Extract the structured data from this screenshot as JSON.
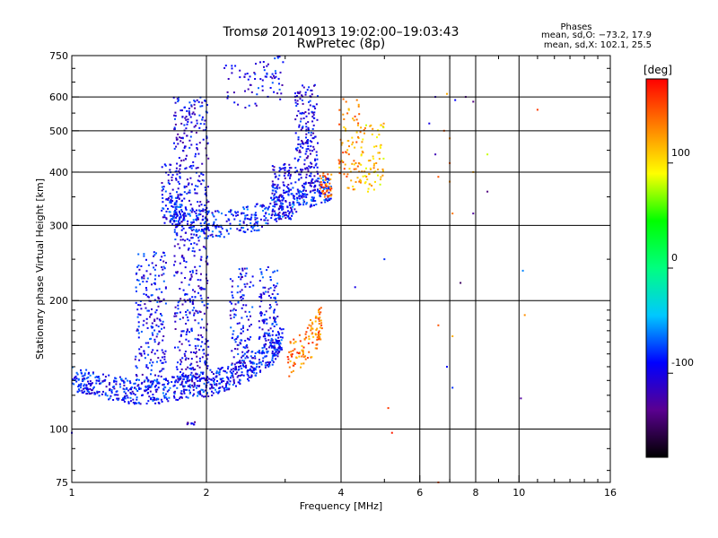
{
  "chart_data": {
    "type": "scatter",
    "title": "Tromsø 20140913 19:02:00–19:03:43",
    "subtitle": "RwPretec (8p)",
    "xlabel": "Frequency [MHz]",
    "ylabel": "Stationary phase Virtual Height [km]",
    "xscale": "log",
    "yscale": "log",
    "xlim": [
      1,
      16
    ],
    "ylim": [
      75,
      750
    ],
    "x_ticks": [
      1,
      2,
      4,
      6,
      8,
      10,
      16
    ],
    "x_tick_labels": [
      "1",
      "2",
      "4",
      "6",
      "8",
      "10",
      "16"
    ],
    "x_grid": [
      2,
      4,
      6,
      7,
      8,
      10
    ],
    "y_ticks": [
      75,
      100,
      200,
      300,
      400,
      500,
      600,
      750
    ],
    "y_tick_labels": [
      "75",
      "100",
      "200",
      "300",
      "400",
      "500",
      "600",
      "750"
    ],
    "y_grid": [
      100,
      200,
      300,
      400,
      500,
      600
    ],
    "grid": true,
    "info": {
      "heading": "Phases",
      "line1": "mean, sd,O: −73.2, 17.9",
      "line2": "mean, sd,X: 102.1, 25.5"
    },
    "colorbar": {
      "label": "[deg]",
      "range": [
        -180,
        180
      ],
      "ticks": [
        100,
        0,
        -100
      ],
      "tick_labels": [
        "100",
        "0",
        "-100"
      ],
      "colors": [
        "#000000",
        "#5a0090",
        "#0000ff",
        "#00c8ff",
        "#00ff80",
        "#00ff00",
        "#ffff00",
        "#ff8000",
        "#ff0000"
      ]
    },
    "points_note": "traces estimated from plot",
    "traces": [
      {
        "kind": "curve",
        "phase": -90,
        "jitter": 0.14,
        "density": 70,
        "pts": [
          [
            1.0,
            128
          ],
          [
            1.1,
            125
          ],
          [
            1.25,
            121
          ],
          [
            1.4,
            119
          ],
          [
            1.6,
            120
          ],
          [
            1.8,
            122
          ],
          [
            2.0,
            124
          ],
          [
            2.2,
            128
          ],
          [
            2.5,
            135
          ],
          [
            2.8,
            148
          ],
          [
            2.95,
            158
          ]
        ]
      },
      {
        "kind": "column",
        "phase": -95,
        "xc": 1.5,
        "width": 0.08,
        "y0": 122,
        "y1": 260,
        "n": 220
      },
      {
        "kind": "column",
        "phase": -100,
        "xc": 1.85,
        "width": 0.09,
        "y0": 125,
        "y1": 600,
        "n": 520
      },
      {
        "kind": "column",
        "phase": -95,
        "xc": 2.4,
        "width": 0.06,
        "y0": 130,
        "y1": 240,
        "n": 140
      },
      {
        "kind": "column",
        "phase": -90,
        "xc": 2.75,
        "width": 0.05,
        "y0": 150,
        "y1": 240,
        "n": 120
      },
      {
        "kind": "column",
        "phase": -95,
        "xc": 1.67,
        "width": 0.05,
        "y0": 300,
        "y1": 420,
        "n": 90
      },
      {
        "kind": "curve",
        "phase": -85,
        "jitter": 0.15,
        "density": 60,
        "pts": [
          [
            1.65,
            320
          ],
          [
            1.8,
            300
          ],
          [
            2.0,
            293
          ],
          [
            2.3,
            296
          ],
          [
            2.6,
            305
          ],
          [
            2.9,
            320
          ],
          [
            3.2,
            338
          ],
          [
            3.5,
            350
          ],
          [
            3.8,
            360
          ]
        ]
      },
      {
        "kind": "column",
        "phase": -100,
        "xc": 2.95,
        "width": 0.05,
        "y0": 310,
        "y1": 420,
        "n": 120
      },
      {
        "kind": "column",
        "phase": -100,
        "xc": 3.35,
        "width": 0.06,
        "y0": 360,
        "y1": 640,
        "n": 200
      },
      {
        "kind": "curve",
        "phase": -95,
        "jitter": 0.25,
        "density": 25,
        "pts": [
          [
            2.2,
            608
          ],
          [
            2.5,
            612
          ],
          [
            2.75,
            628
          ],
          [
            2.95,
            640
          ]
        ]
      },
      {
        "kind": "column",
        "phase": 130,
        "xc": 4.2,
        "width": 0.06,
        "y0": 360,
        "y1": 600,
        "n": 80
      },
      {
        "kind": "column",
        "phase": 110,
        "xc": 4.7,
        "width": 0.06,
        "y0": 360,
        "y1": 520,
        "n": 70
      },
      {
        "kind": "column",
        "phase": 140,
        "xc": 3.7,
        "width": 0.03,
        "y0": 350,
        "y1": 400,
        "n": 40
      },
      {
        "kind": "curve",
        "phase": 140,
        "jitter": 0.2,
        "density": 30,
        "pts": [
          [
            3.05,
            140
          ],
          [
            3.2,
            145
          ],
          [
            3.4,
            155
          ],
          [
            3.55,
            165
          ],
          [
            3.6,
            175
          ]
        ]
      },
      {
        "kind": "column",
        "phase": -110,
        "xc": 1.85,
        "width": 0.02,
        "y0": 102,
        "y1": 104,
        "n": 10
      }
    ],
    "scattered_points": [
      [
        6.5,
        600,
        -110
      ],
      [
        6.9,
        610,
        120
      ],
      [
        7.2,
        590,
        -90
      ],
      [
        7.6,
        600,
        -130
      ],
      [
        7.9,
        585,
        -140
      ],
      [
        6.3,
        520,
        -100
      ],
      [
        6.8,
        500,
        150
      ],
      [
        7.0,
        480,
        130
      ],
      [
        6.5,
        440,
        -120
      ],
      [
        7.0,
        420,
        150
      ],
      [
        7.9,
        400,
        120
      ],
      [
        6.6,
        390,
        150
      ],
      [
        7.0,
        380,
        130
      ],
      [
        7.1,
        320,
        140
      ],
      [
        7.9,
        320,
        -130
      ],
      [
        8.5,
        360,
        -140
      ],
      [
        5.0,
        250,
        -80
      ],
      [
        7.4,
        220,
        -150
      ],
      [
        4.3,
        215,
        -100
      ],
      [
        10.2,
        235,
        -60
      ],
      [
        6.6,
        175,
        150
      ],
      [
        7.1,
        165,
        120
      ],
      [
        10.3,
        185,
        130
      ],
      [
        6.9,
        140,
        -90
      ],
      [
        7.1,
        125,
        -80
      ],
      [
        10.1,
        118,
        -130
      ],
      [
        5.1,
        112,
        160
      ],
      [
        5.2,
        98,
        170
      ],
      [
        6.6,
        75,
        150
      ],
      [
        11.0,
        560,
        160
      ],
      [
        8.5,
        440,
        80
      ],
      [
        1.0,
        98,
        -100
      ]
    ]
  }
}
